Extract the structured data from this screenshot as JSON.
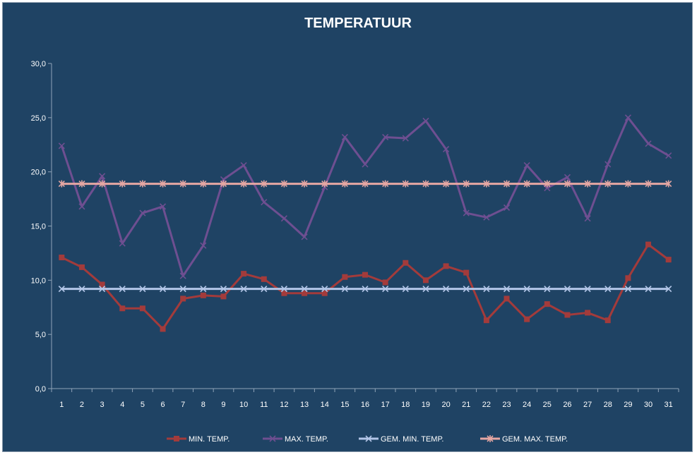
{
  "chart_data": {
    "type": "line",
    "title": "TEMPERATUUR",
    "xlabel": "",
    "ylabel": "",
    "ylim": [
      0,
      30
    ],
    "yticks": [
      "0,0",
      "5,0",
      "10,0",
      "15,0",
      "20,0",
      "25,0",
      "30,0"
    ],
    "grid": false,
    "legend_position": "bottom",
    "x": [
      "1",
      "2",
      "3",
      "4",
      "5",
      "6",
      "7",
      "8",
      "9",
      "10",
      "11",
      "12",
      "13",
      "14",
      "15",
      "16",
      "17",
      "18",
      "19",
      "20",
      "21",
      "22",
      "23",
      "24",
      "25",
      "26",
      "27",
      "28",
      "29",
      "30",
      "31"
    ],
    "series": [
      {
        "name": "MIN. TEMP.",
        "color": "#a33b3b",
        "marker": "square",
        "values": [
          12.1,
          11.2,
          9.6,
          7.4,
          7.4,
          5.5,
          8.3,
          8.6,
          8.5,
          10.6,
          10.1,
          8.8,
          8.8,
          8.8,
          10.3,
          10.5,
          9.8,
          11.6,
          10.0,
          11.3,
          10.7,
          6.3,
          8.3,
          6.4,
          7.8,
          6.8,
          7.0,
          6.3,
          10.2,
          13.3,
          11.9
        ]
      },
      {
        "name": "MAX. TEMP.",
        "color": "#6e4f91",
        "marker": "x",
        "values": [
          22.4,
          16.8,
          19.6,
          13.4,
          16.2,
          16.8,
          10.4,
          13.2,
          19.3,
          20.6,
          17.2,
          15.7,
          14.0,
          18.6,
          23.2,
          20.7,
          23.2,
          23.1,
          24.7,
          22.1,
          16.2,
          15.8,
          16.7,
          20.6,
          18.5,
          19.5,
          15.7,
          20.7,
          25.0,
          22.6,
          21.5
        ]
      },
      {
        "name": "GEM. MIN. TEMP.",
        "color": "#b3c6e8",
        "marker": "x",
        "values": [
          9.2,
          9.2,
          9.2,
          9.2,
          9.2,
          9.2,
          9.2,
          9.2,
          9.2,
          9.2,
          9.2,
          9.2,
          9.2,
          9.2,
          9.2,
          9.2,
          9.2,
          9.2,
          9.2,
          9.2,
          9.2,
          9.2,
          9.2,
          9.2,
          9.2,
          9.2,
          9.2,
          9.2,
          9.2,
          9.2,
          9.2
        ]
      },
      {
        "name": "GEM. MAX. TEMP.",
        "color": "#e6a7a3",
        "marker": "asterisk",
        "values": [
          18.9,
          18.9,
          18.9,
          18.9,
          18.9,
          18.9,
          18.9,
          18.9,
          18.9,
          18.9,
          18.9,
          18.9,
          18.9,
          18.9,
          18.9,
          18.9,
          18.9,
          18.9,
          18.9,
          18.9,
          18.9,
          18.9,
          18.9,
          18.9,
          18.9,
          18.9,
          18.9,
          18.9,
          18.9,
          18.9,
          18.9
        ]
      }
    ]
  }
}
